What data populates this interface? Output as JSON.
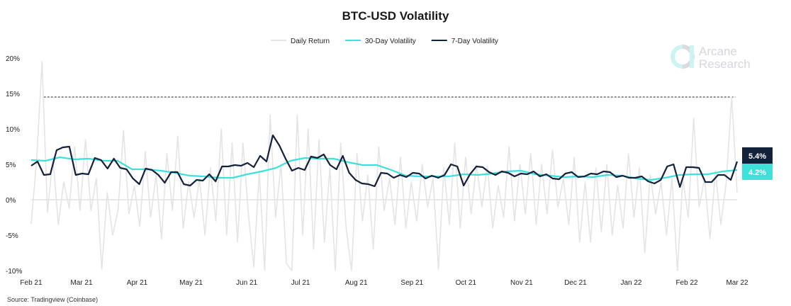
{
  "chart_data": {
    "type": "line",
    "title": "BTC-USD Volatility",
    "source": "Source: Tradingview (Coinbase)",
    "logo_text": [
      "Arcane",
      "Research"
    ],
    "xlim": [
      "2021-02-01",
      "2022-03-01"
    ],
    "ylim": [
      -10,
      20
    ],
    "y_ticks": [
      "20%",
      "15%",
      "10%",
      "5%",
      "0%",
      "-5%",
      "-10%"
    ],
    "y_tick_values": [
      20,
      15,
      10,
      5,
      0,
      -5,
      -10
    ],
    "x_ticks": [
      "Feb 21",
      "Mar 21",
      "Apr 21",
      "May 21",
      "Jun 21",
      "Jul 21",
      "Aug 21",
      "Sep 21",
      "Oct 21",
      "Nov 21",
      "Dec 21",
      "Jan 22",
      "Feb 22",
      "Mar 22"
    ],
    "x_tick_dates": [
      "2021-02-01",
      "2021-03-01",
      "2021-04-01",
      "2021-05-01",
      "2021-06-01",
      "2021-07-01",
      "2021-08-01",
      "2021-09-01",
      "2021-10-01",
      "2021-11-01",
      "2021-12-01",
      "2022-01-01",
      "2022-02-01",
      "2022-03-01"
    ],
    "reference_line": {
      "value": 14.5,
      "style": "dashed",
      "from": "2021-02-08",
      "to": "2022-02-28"
    },
    "legend_position": "top-center",
    "grid": false,
    "series": [
      {
        "name": "Daily Return",
        "color": "#e4e4e4",
        "values": [
          -3.4,
          5.5,
          19.5,
          -1.8,
          6.0,
          -3.5,
          2.5,
          -1.2,
          7.5,
          -1.5,
          8.5,
          -1.5,
          3.0,
          -9.8,
          1.0,
          -5.0,
          -1.5,
          9.8,
          -2.0,
          2.0,
          -3.8,
          6.8,
          -2.5,
          3.5,
          -5.5,
          6.5,
          -1.5,
          9.0,
          -4.0,
          2.5,
          -2.5,
          3.0,
          -5.0,
          4.5,
          -3.0,
          10.0,
          -5.0,
          8.0,
          -6.0,
          8.0,
          -2.0,
          -9.5,
          4.0,
          -10.0,
          12.0,
          -2.5,
          5.0,
          -9.0,
          -10.0,
          12.0,
          -5.0,
          10.0,
          -7.0,
          8.5,
          -6.0,
          4.5,
          -10.0,
          8.0,
          -4.0,
          -10.0,
          6.5,
          -3.0,
          3.5,
          -7.0,
          7.5,
          -1.5,
          3.0,
          -3.5,
          6.0,
          -4.0,
          2.5,
          -3.0,
          5.0,
          -1.0,
          3.0,
          -9.8,
          4.5,
          -3.5,
          8.0,
          -4.0,
          6.0,
          -2.0,
          5.0,
          -1.0,
          4.8,
          -4.0,
          2.0,
          -2.5,
          7.5,
          -3.0,
          5.0,
          -2.0,
          6.5,
          -3.5,
          5.0,
          -2.0,
          7.0,
          -1.0,
          3.0,
          -3.5,
          6.0,
          -6.0,
          2.5,
          -6.0,
          4.5,
          -4.5,
          5.0,
          -5.0,
          2.0,
          -4.0,
          6.5,
          -2.5,
          4.5,
          -7.5,
          3.5,
          -2.0,
          2.5,
          -5.0,
          3.0,
          -10.0,
          3.0,
          -2.5,
          11.5,
          -1.0,
          3.0,
          -5.5,
          4.0,
          -3.5,
          2.5,
          14.5,
          1.0
        ]
      },
      {
        "name": "30-Day Volatility",
        "color": "#3ee0da",
        "last_label": "4.2%",
        "values": [
          5.6,
          5.5,
          6.0,
          5.7,
          5.8,
          5.5,
          5.5,
          4.3,
          4.3,
          4.1,
          3.8,
          3.4,
          3.3,
          3.1,
          3.1,
          3.6,
          4.0,
          4.5,
          5.5,
          5.9,
          5.8,
          5.8,
          5.3,
          4.9,
          4.9,
          4.2,
          3.4,
          3.3,
          3.3,
          3.3,
          3.6,
          3.5,
          3.7,
          4.0,
          4.1,
          3.6,
          3.4,
          3.2,
          3.3,
          3.2,
          3.5,
          3.4,
          3.0,
          2.8,
          3.1,
          3.5,
          3.6,
          3.6,
          4.0,
          4.2
        ]
      },
      {
        "name": "7-Day Volatility",
        "color": "#14213a",
        "last_label": "5.4%",
        "values": [
          4.8,
          5.4,
          3.5,
          3.6,
          7.0,
          7.4,
          7.5,
          3.5,
          3.7,
          3.6,
          5.9,
          5.6,
          4.4,
          5.8,
          4.5,
          4.3,
          3.0,
          2.2,
          4.4,
          4.2,
          3.5,
          2.4,
          3.9,
          3.9,
          2.2,
          2.0,
          2.8,
          2.7,
          3.6,
          2.6,
          4.7,
          4.7,
          4.9,
          4.8,
          5.2,
          4.6,
          6.2,
          5.4,
          9.1,
          7.7,
          5.8,
          4.1,
          4.5,
          4.2,
          6.1,
          5.9,
          6.4,
          4.9,
          4.3,
          6.2,
          3.8,
          2.8,
          2.3,
          2.2,
          1.9,
          3.8,
          3.7,
          3.1,
          3.5,
          3.2,
          3.8,
          3.7,
          3.0,
          3.4,
          3.1,
          3.5,
          5.0,
          4.7,
          2.0,
          3.6,
          4.7,
          4.6,
          3.9,
          3.5,
          4.0,
          3.8,
          3.3,
          3.7,
          3.6,
          4.0,
          3.3,
          3.6,
          3.0,
          2.9,
          3.7,
          3.9,
          3.2,
          3.3,
          3.7,
          3.6,
          4.0,
          3.9,
          3.2,
          3.4,
          3.1,
          3.1,
          3.3,
          2.6,
          2.3,
          2.8,
          4.7,
          5.0,
          1.8,
          4.6,
          4.6,
          4.5,
          2.5,
          2.5,
          3.5,
          3.5,
          2.8,
          5.4
        ]
      }
    ]
  }
}
